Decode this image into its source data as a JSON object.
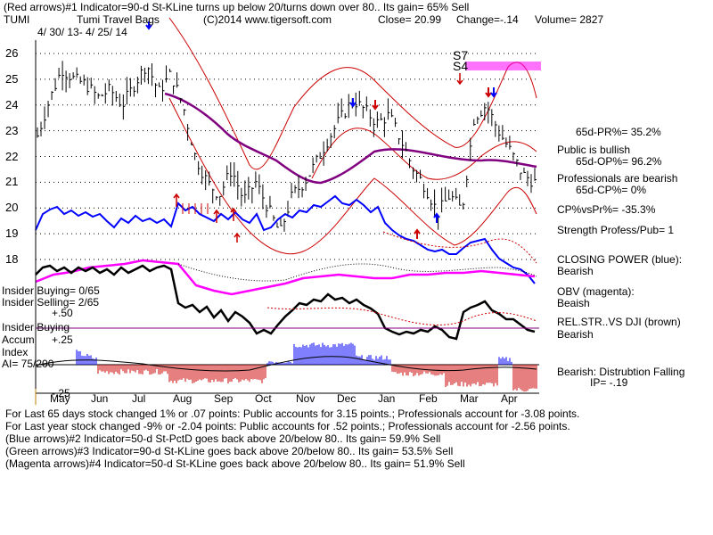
{
  "header": {
    "line1": "(Red arrows)#1 Indicator=90-d St-KLine turns up below 20/turns down over 80.. Its gain= 65% Sell",
    "ticker": "TUMI",
    "company": "Tumi Travel Bags",
    "copyright": "(C)2014 www.tigersoft.com",
    "close": "Close=  20.99",
    "change": "Change=-.14",
    "volume": "Volume= 2827",
    "date_range": "4/ 30/ 13- 4/ 25/ 14"
  },
  "right_panel": {
    "pr": "65d-PR%= 35.2%",
    "public": "Public is bullish",
    "op": "65d-OP%= 96.2%",
    "pros": "Professionals are bearish",
    "cp": "65d-CP%= 0%",
    "cpvspr": "CP%vsPr%= -35.3%",
    "strength": "Strength Profess/Pub= 1",
    "closing_power_label": "CLOSING POWER (blue):",
    "closing_power_value": "Bearish",
    "obv_label": "OBV (magenta):",
    "obv_value": "Beaish",
    "relstr_label": "REL.STR..VS DJI (brown)",
    "relstr_value": "Bearish",
    "bearish_label": "Bearish:  Distrubtion Falling",
    "ip_value": "IP= -.19"
  },
  "left_panel": {
    "insider_buying": "Insider Buying= 0/65",
    "insider_selling": "Insider Selling= 2/65",
    "plus50": "+.50",
    "insider_buying2": "Insider Buying",
    "accum": "Accum",
    "plus25": "+.25",
    "index": "Index",
    "ai": "AI= 75/200",
    "minus25": "-.25"
  },
  "signals": {
    "s7": "S7",
    "s4": "S4"
  },
  "footer": {
    "line1": "For Last 65 days stock changed  1% or  .07 points:  Public accounts for  3.15 points.;  Professionals account for -3.08 points.",
    "line2": "For Last year stock changed -9% or -2.04 points:  Public accounts for  .52 points.;  Professionals account for -2.56 points.",
    "line3": "(Blue arrows)#2 Indicator=50-d St-PctD goes back above 20/below 80.. Its gain= 59.9% Sell",
    "line4": "(Green arrows)#3 Indicator=90-d St-KLine goes back above 20/below 80.. Its gain= 53.5% Sell",
    "line5": "(Magenta arrows)#4 Indicator=50-d St-KLine goes back above 20/below 80.. Its gain= 51.9% Sell"
  },
  "colors": {
    "price": "#000000",
    "ma": "#800080",
    "band": "#cc0000",
    "closing_power": "#0000ff",
    "obv": "#ff00ff",
    "relstr": "#000000",
    "accum_pos": "#0000ff",
    "accum_neg": "#cc0000"
  },
  "chart_data": {
    "type": "line",
    "title": "Tumi Travel Bags",
    "xlabel": "",
    "ylabel": "",
    "ylim": [
      17.5,
      26.5
    ],
    "y_ticks": [
      "26",
      "25",
      "24",
      "23",
      "22",
      "21",
      "20",
      "19",
      "18"
    ],
    "y_tick_values": [
      26,
      25,
      24,
      23,
      22,
      21,
      20,
      19,
      18
    ],
    "months": [
      "May",
      "Jun",
      "Jul",
      "Aug",
      "Sep",
      "Oct",
      "Nov",
      "Dec",
      "Jan",
      "Feb",
      "Mar",
      "Apr"
    ],
    "price_points": [
      22.8,
      24.2,
      25.4,
      25.0,
      24.8,
      24.3,
      24.6,
      24.0,
      24.8,
      25.6,
      24.5,
      25.2,
      24.0,
      22.0,
      21.0,
      20.5,
      21.5,
      20.3,
      21.0,
      20.0,
      19.0,
      20.5,
      21.0,
      21.8,
      22.7,
      23.5,
      24.2,
      23.8,
      23.3,
      23.6,
      22.6,
      21.5,
      20.8,
      19.8,
      20.5,
      19.9,
      23.5,
      24.0,
      23.0,
      22.2,
      21.3,
      21.0
    ]
  }
}
